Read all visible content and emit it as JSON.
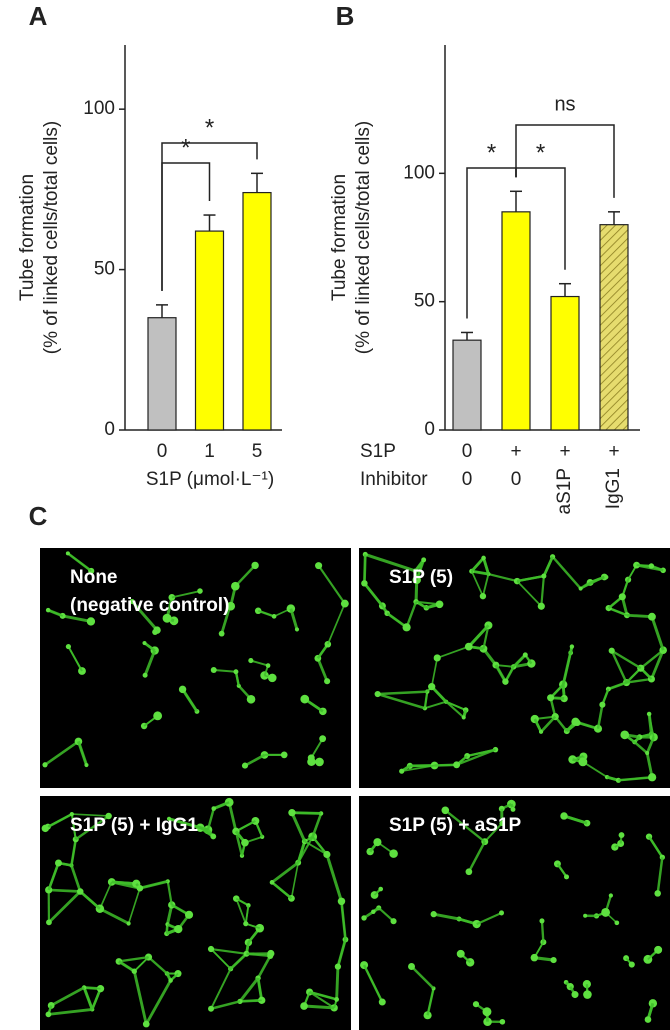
{
  "chart_data": [
    {
      "type": "bar",
      "panel_label": "A",
      "ylabel": [
        "Tube formation",
        "(% of linked cells/total cells)"
      ],
      "xlabel": "S1P (μmol·L⁻¹)",
      "category_rows": [
        {
          "values": [
            "0",
            "1",
            "5"
          ]
        }
      ],
      "series": [
        {
          "values": [
            35,
            62,
            74
          ],
          "errors": [
            4,
            5,
            6
          ],
          "colors": [
            "#c0c0c0",
            "#ffff00",
            "#ffff00"
          ],
          "hatch": [
            false,
            false,
            false
          ]
        }
      ],
      "ylim": [
        0,
        120
      ],
      "yticks": [
        0,
        50,
        100
      ],
      "annotations": [
        {
          "label": "*",
          "from": 0,
          "to": 1
        },
        {
          "label": "*",
          "from": 0,
          "to": 2
        }
      ]
    },
    {
      "type": "bar",
      "panel_label": "B",
      "ylabel": [
        "Tube formation",
        "(% of linked cells/total cells)"
      ],
      "category_rows": [
        {
          "label": "S1P",
          "values": [
            "0",
            "+",
            "+",
            "+"
          ]
        },
        {
          "label": "Inhibitor",
          "values": [
            "0",
            "0",
            "aS1P",
            "IgG1"
          ]
        }
      ],
      "series": [
        {
          "values": [
            35,
            85,
            52,
            80
          ],
          "errors": [
            3,
            8,
            5,
            5
          ],
          "colors": [
            "#c0c0c0",
            "#ffff00",
            "#ffff00",
            "#e6dc6e"
          ],
          "hatch": [
            false,
            false,
            false,
            true
          ]
        }
      ],
      "ylim": [
        0,
        150
      ],
      "yticks": [
        0,
        50,
        100
      ],
      "annotations": [
        {
          "label": "*",
          "from": 0,
          "to": 1
        },
        {
          "label": "*",
          "from": 1,
          "to": 2
        },
        {
          "label": "ns",
          "from": 1,
          "to": 3
        }
      ]
    }
  ],
  "panel_c": {
    "panel_label": "C",
    "images": [
      {
        "label": [
          "None",
          "(negative control)"
        ]
      },
      {
        "label": [
          "S1P (5)"
        ]
      },
      {
        "label": [
          "S1P (5) + IgG1"
        ]
      },
      {
        "label": [
          "S1P (5) + aS1P"
        ]
      }
    ]
  }
}
